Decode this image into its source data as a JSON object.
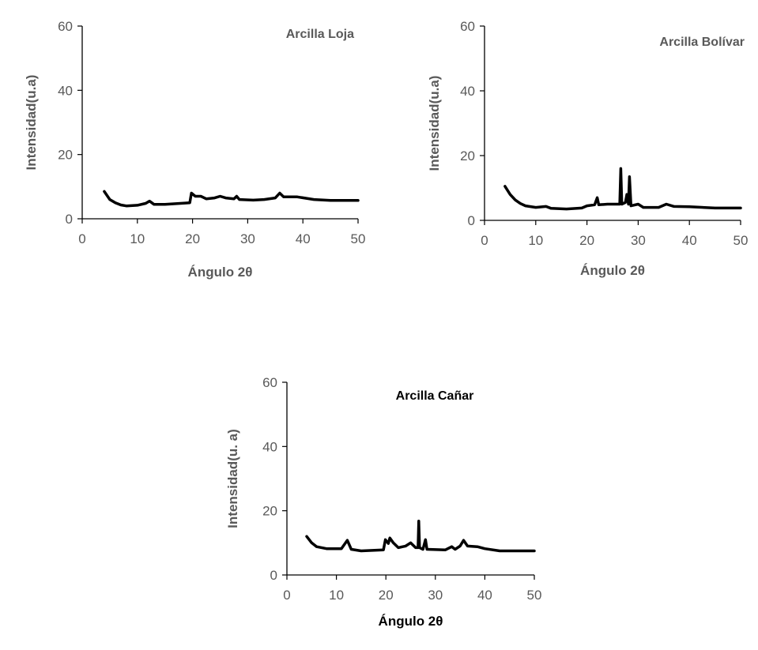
{
  "chart_data": [
    {
      "type": "line",
      "title": "Arcilla Loja",
      "title_color": "#595959",
      "xlabel": "Ángulo 2θ",
      "ylabel": "Intensidad(u.a)",
      "label_color": "#595959",
      "xlim": [
        0,
        50
      ],
      "ylim": [
        0,
        60
      ],
      "xticks": [
        "0",
        "10",
        "20",
        "30",
        "40",
        "50"
      ],
      "yticks": [
        "0",
        "20",
        "40",
        "60"
      ],
      "grid": false,
      "line_color": "#000000",
      "points": [
        [
          4,
          8.5
        ],
        [
          5,
          6
        ],
        [
          6,
          5
        ],
        [
          7,
          4.3
        ],
        [
          8,
          4
        ],
        [
          10,
          4.2
        ],
        [
          11.5,
          4.8
        ],
        [
          12.2,
          5.5
        ],
        [
          13,
          4.5
        ],
        [
          15,
          4.5
        ],
        [
          19.5,
          5
        ],
        [
          19.8,
          8
        ],
        [
          20.5,
          7
        ],
        [
          21.5,
          7
        ],
        [
          22.5,
          6.2
        ],
        [
          24,
          6.5
        ],
        [
          25,
          7
        ],
        [
          26,
          6.5
        ],
        [
          27.5,
          6.2
        ],
        [
          28,
          7
        ],
        [
          28.5,
          6
        ],
        [
          31,
          5.8
        ],
        [
          33,
          6
        ],
        [
          35,
          6.5
        ],
        [
          35.8,
          8
        ],
        [
          36.5,
          6.8
        ],
        [
          39,
          6.8
        ],
        [
          42,
          6
        ],
        [
          45,
          5.7
        ],
        [
          50,
          5.7
        ]
      ]
    },
    {
      "type": "line",
      "title": "Arcilla Bolívar",
      "title_color": "#595959",
      "xlabel": "Ángulo 2θ",
      "ylabel": "Intensidad(u.a)",
      "label_color": "#595959",
      "xlim": [
        0,
        50
      ],
      "ylim": [
        0,
        60
      ],
      "xticks": [
        "0",
        "10",
        "20",
        "30",
        "40",
        "50"
      ],
      "yticks": [
        "0",
        "20",
        "40",
        "60"
      ],
      "grid": false,
      "line_color": "#000000",
      "points": [
        [
          4,
          10.5
        ],
        [
          5,
          8
        ],
        [
          6,
          6.3
        ],
        [
          7,
          5.2
        ],
        [
          8,
          4.5
        ],
        [
          10,
          4
        ],
        [
          12,
          4.3
        ],
        [
          13,
          3.7
        ],
        [
          16,
          3.5
        ],
        [
          19,
          3.8
        ],
        [
          20,
          4.5
        ],
        [
          21.5,
          4.8
        ],
        [
          22,
          7
        ],
        [
          22.3,
          4.8
        ],
        [
          24,
          5
        ],
        [
          26.4,
          5
        ],
        [
          26.6,
          16
        ],
        [
          26.8,
          5
        ],
        [
          27.5,
          5.5
        ],
        [
          27.8,
          8
        ],
        [
          28.1,
          5
        ],
        [
          28.3,
          13.5
        ],
        [
          28.6,
          4.5
        ],
        [
          30,
          5
        ],
        [
          31,
          4
        ],
        [
          34,
          4
        ],
        [
          35.5,
          5
        ],
        [
          37,
          4.3
        ],
        [
          40,
          4.2
        ],
        [
          45,
          3.8
        ],
        [
          50,
          3.8
        ]
      ]
    },
    {
      "type": "line",
      "title": "Arcilla Cañar",
      "title_color": "#000000",
      "xlabel": "Ángulo 2θ",
      "ylabel": "Intensidad(u. a)",
      "label_color": "#595959",
      "xlabel_color": "#000000",
      "xlim": [
        0,
        50
      ],
      "ylim": [
        0,
        60
      ],
      "xticks": [
        "0",
        "10",
        "20",
        "30",
        "40",
        "50"
      ],
      "yticks": [
        "0",
        "20",
        "40",
        "60"
      ],
      "grid": false,
      "line_color": "#000000",
      "points": [
        [
          4,
          12
        ],
        [
          5,
          10
        ],
        [
          6,
          8.8
        ],
        [
          8,
          8.2
        ],
        [
          11,
          8.2
        ],
        [
          12.2,
          10.8
        ],
        [
          13,
          8
        ],
        [
          15,
          7.5
        ],
        [
          19.5,
          7.8
        ],
        [
          19.9,
          11
        ],
        [
          20.5,
          9.8
        ],
        [
          20.8,
          11.5
        ],
        [
          21.5,
          10
        ],
        [
          22.5,
          8.5
        ],
        [
          24,
          9
        ],
        [
          25,
          10
        ],
        [
          26,
          8.5
        ],
        [
          26.5,
          8.5
        ],
        [
          26.65,
          16.8
        ],
        [
          26.8,
          8.5
        ],
        [
          27.5,
          8
        ],
        [
          28,
          11
        ],
        [
          28.3,
          8
        ],
        [
          32,
          7.8
        ],
        [
          33.3,
          8.8
        ],
        [
          34,
          8
        ],
        [
          35,
          9
        ],
        [
          35.7,
          10.8
        ],
        [
          36.5,
          9
        ],
        [
          38.5,
          8.8
        ],
        [
          40,
          8.2
        ],
        [
          43,
          7.5
        ],
        [
          50,
          7.5
        ]
      ]
    }
  ]
}
